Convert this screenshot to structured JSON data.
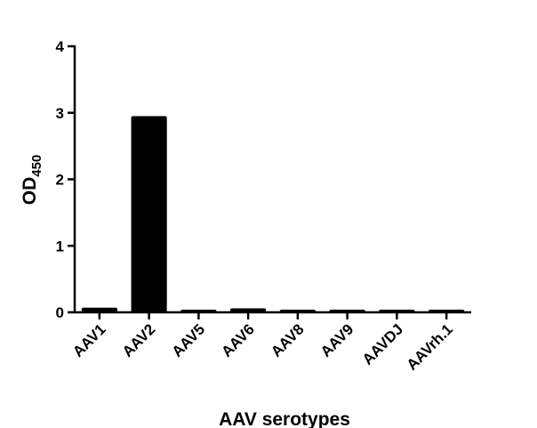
{
  "chart_data": {
    "type": "bar",
    "categories": [
      "AAV1",
      "AAV2",
      "AAV5",
      "AAV6",
      "AAV8",
      "AAV9",
      "AAVDJ",
      "AAVrh.1"
    ],
    "values": [
      0.07,
      2.95,
      0.04,
      0.06,
      0.04,
      0.04,
      0.04,
      0.04
    ],
    "xlabel": "AAV serotypes",
    "ylabel_main": "OD",
    "ylabel_sub": "450",
    "ylim": [
      0,
      4
    ],
    "yticks": [
      "0",
      "1",
      "2",
      "3",
      "4"
    ],
    "bar_color": "#000000",
    "grid": false
  }
}
